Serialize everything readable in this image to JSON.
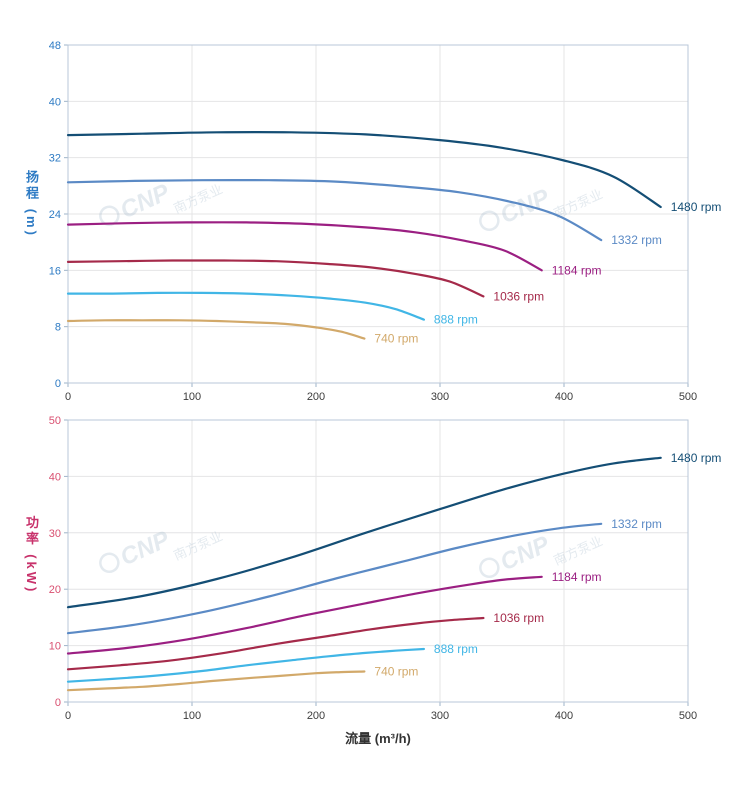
{
  "style": {
    "background": "#ffffff",
    "grid": "#e4e4e6",
    "border": "#b9c7d8",
    "tick": "#9eb3c8",
    "xtick_text": "#3c3c3c",
    "watermark_color": "#9fb6c9",
    "head_axis_color": "#2e7bc4",
    "power_axis_color": "#d94f70"
  },
  "watermark": {
    "brand": "CNP",
    "brand_cn": "南方泵业"
  },
  "chart_data": [
    {
      "type": "line",
      "title": "",
      "ylabel": "扬程 (m)",
      "xlabel": "",
      "xlim": [
        0,
        500
      ],
      "ylim": [
        0,
        48
      ],
      "xtick_step": 100,
      "ytick_step": 8,
      "grid": true,
      "legend_position": "end-of-line",
      "axis_color": "#2e7bc4",
      "series": [
        {
          "name": "1480 rpm",
          "color": "#144e75",
          "points": [
            [
              0,
              35.2
            ],
            [
              60,
              35.4
            ],
            [
              120,
              35.6
            ],
            [
              180,
              35.6
            ],
            [
              240,
              35.3
            ],
            [
              300,
              34.5
            ],
            [
              350,
              33.4
            ],
            [
              400,
              31.6
            ],
            [
              440,
              29.3
            ],
            [
              478,
              25.0
            ]
          ]
        },
        {
          "name": "1332 rpm",
          "color": "#5b8ac5",
          "points": [
            [
              0,
              28.5
            ],
            [
              54,
              28.7
            ],
            [
              108,
              28.8
            ],
            [
              162,
              28.8
            ],
            [
              216,
              28.6
            ],
            [
              270,
              27.9
            ],
            [
              315,
              27.1
            ],
            [
              360,
              25.6
            ],
            [
              396,
              23.7
            ],
            [
              430,
              20.3
            ]
          ]
        },
        {
          "name": "1184 rpm",
          "color": "#9b1f82",
          "points": [
            [
              0,
              22.5
            ],
            [
              48,
              22.7
            ],
            [
              96,
              22.8
            ],
            [
              144,
              22.8
            ],
            [
              192,
              22.6
            ],
            [
              240,
              22.1
            ],
            [
              280,
              21.4
            ],
            [
              320,
              20.2
            ],
            [
              352,
              18.8
            ],
            [
              382,
              16.0
            ]
          ]
        },
        {
          "name": "1036 rpm",
          "color": "#a52a4a",
          "points": [
            [
              0,
              17.2
            ],
            [
              42,
              17.3
            ],
            [
              84,
              17.4
            ],
            [
              126,
              17.4
            ],
            [
              168,
              17.3
            ],
            [
              210,
              16.9
            ],
            [
              245,
              16.4
            ],
            [
              280,
              15.5
            ],
            [
              308,
              14.4
            ],
            [
              335,
              12.3
            ]
          ]
        },
        {
          "name": "888 rpm",
          "color": "#41b6e6",
          "points": [
            [
              0,
              12.7
            ],
            [
              36,
              12.7
            ],
            [
              72,
              12.8
            ],
            [
              108,
              12.8
            ],
            [
              144,
              12.7
            ],
            [
              180,
              12.4
            ],
            [
              210,
              12.0
            ],
            [
              240,
              11.4
            ],
            [
              264,
              10.5
            ],
            [
              287,
              9.0
            ]
          ]
        },
        {
          "name": "740 rpm",
          "color": "#d2a96a",
          "points": [
            [
              0,
              8.8
            ],
            [
              30,
              8.9
            ],
            [
              60,
              8.9
            ],
            [
              90,
              8.9
            ],
            [
              120,
              8.8
            ],
            [
              150,
              8.6
            ],
            [
              175,
              8.4
            ],
            [
              200,
              7.9
            ],
            [
              220,
              7.3
            ],
            [
              239,
              6.3
            ]
          ]
        }
      ]
    },
    {
      "type": "line",
      "title": "",
      "ylabel": "功率 (kW)",
      "xlabel": "流量 (m³/h)",
      "xlim": [
        0,
        500
      ],
      "ylim": [
        0,
        50
      ],
      "xtick_step": 100,
      "ytick_step": 10,
      "grid": true,
      "legend_position": "end-of-line",
      "axis_color": "#d94f70",
      "series": [
        {
          "name": "1480 rpm",
          "color": "#144e75",
          "points": [
            [
              0,
              16.8
            ],
            [
              60,
              18.8
            ],
            [
              120,
              21.8
            ],
            [
              180,
              25.6
            ],
            [
              240,
              30.0
            ],
            [
              300,
              34.2
            ],
            [
              350,
              37.6
            ],
            [
              400,
              40.5
            ],
            [
              440,
              42.3
            ],
            [
              478,
              43.3
            ]
          ]
        },
        {
          "name": "1332 rpm",
          "color": "#5b8ac5",
          "points": [
            [
              0,
              12.2
            ],
            [
              54,
              13.7
            ],
            [
              108,
              15.9
            ],
            [
              162,
              18.7
            ],
            [
              216,
              21.9
            ],
            [
              270,
              24.9
            ],
            [
              315,
              27.4
            ],
            [
              360,
              29.5
            ],
            [
              396,
              30.8
            ],
            [
              430,
              31.6
            ]
          ]
        },
        {
          "name": "1184 rpm",
          "color": "#9b1f82",
          "points": [
            [
              0,
              8.6
            ],
            [
              48,
              9.6
            ],
            [
              96,
              11.1
            ],
            [
              144,
              13.1
            ],
            [
              192,
              15.4
            ],
            [
              240,
              17.5
            ],
            [
              280,
              19.2
            ],
            [
              320,
              20.7
            ],
            [
              352,
              21.7
            ],
            [
              382,
              22.2
            ]
          ]
        },
        {
          "name": "1036 rpm",
          "color": "#a52a4a",
          "points": [
            [
              0,
              5.8
            ],
            [
              42,
              6.5
            ],
            [
              84,
              7.4
            ],
            [
              126,
              8.7
            ],
            [
              168,
              10.3
            ],
            [
              210,
              11.7
            ],
            [
              245,
              12.9
            ],
            [
              280,
              13.9
            ],
            [
              308,
              14.5
            ],
            [
              335,
              14.9
            ]
          ]
        },
        {
          "name": "888 rpm",
          "color": "#41b6e6",
          "points": [
            [
              0,
              3.6
            ],
            [
              36,
              4.1
            ],
            [
              72,
              4.7
            ],
            [
              108,
              5.5
            ],
            [
              144,
              6.5
            ],
            [
              180,
              7.4
            ],
            [
              210,
              8.1
            ],
            [
              240,
              8.7
            ],
            [
              264,
              9.1
            ],
            [
              287,
              9.4
            ]
          ]
        },
        {
          "name": "740 rpm",
          "color": "#d2a96a",
          "points": [
            [
              0,
              2.1
            ],
            [
              30,
              2.4
            ],
            [
              60,
              2.7
            ],
            [
              90,
              3.2
            ],
            [
              120,
              3.8
            ],
            [
              150,
              4.3
            ],
            [
              175,
              4.7
            ],
            [
              200,
              5.1
            ],
            [
              220,
              5.3
            ],
            [
              239,
              5.4
            ]
          ]
        }
      ]
    }
  ]
}
